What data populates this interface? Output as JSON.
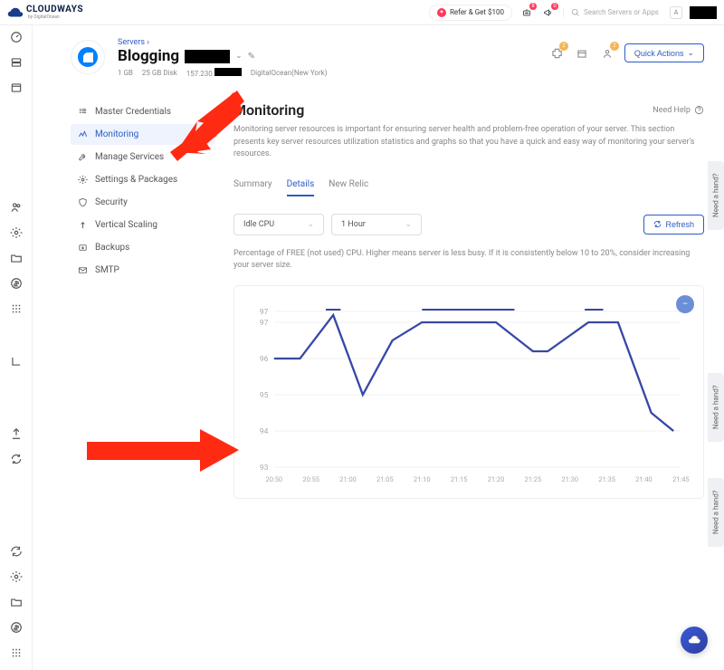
{
  "brand": {
    "name": "CLOUDWAYS",
    "sub": "by DigitalOcean"
  },
  "topbar": {
    "refer_label": "Refer & Get $100",
    "bot_badge": "8",
    "announce_badge": "0",
    "search_placeholder": "Search Servers or Apps",
    "avatar_initial": "A"
  },
  "header": {
    "breadcrumb": "Servers ›",
    "server_name": "Blogging",
    "specs": {
      "ram": "1 GB",
      "disk": "25 GB Disk",
      "ip_prefix": "157.230.",
      "provider": "DigitalOcean(New York)"
    },
    "badge2": "2",
    "badge3": "2",
    "quick_actions": "Quick Actions"
  },
  "sidenav": [
    {
      "icon": "credentials",
      "label": "Master Credentials"
    },
    {
      "icon": "monitoring",
      "label": "Monitoring"
    },
    {
      "icon": "wrench",
      "label": "Manage Services"
    },
    {
      "icon": "gear",
      "label": "Settings & Packages"
    },
    {
      "icon": "shield",
      "label": "Security"
    },
    {
      "icon": "scale",
      "label": "Vertical Scaling"
    },
    {
      "icon": "backup",
      "label": "Backups"
    },
    {
      "icon": "mail",
      "label": "SMTP"
    }
  ],
  "content": {
    "title": "Monitoring",
    "help": "Need Help",
    "desc": "Monitoring server resources is important for ensuring server health and problem-free operation of your server. This section presents key server resources utilization statistics and graphs so that you have a quick and easy way of monitoring your server's resources.",
    "tabs": [
      "Summary",
      "Details",
      "New Relic"
    ],
    "active_tab": 1,
    "metric_select": "Idle CPU",
    "range_select": "1 Hour",
    "refresh": "Refresh",
    "metric_desc": "Percentage of FREE (not used) CPU. Higher means server is less busy. If it is consistently below 10 to 20%, consider increasing your server size."
  },
  "chart": {
    "type": "line",
    "ylim": [
      93,
      97.5
    ],
    "ytick_labels": [
      "97",
      "97",
      "96",
      "95",
      "94",
      "93"
    ],
    "ytick_values": [
      97.3,
      97,
      96,
      95,
      94,
      93
    ],
    "x_labels": [
      "20:50",
      "20:55",
      "21:00",
      "21:05",
      "21:10",
      "21:15",
      "21:20",
      "21:25",
      "21:30",
      "21:35",
      "21:40",
      "21:45"
    ],
    "points": [
      [
        0,
        96
      ],
      [
        0.7,
        96
      ],
      [
        1.6,
        97.2
      ],
      [
        2.4,
        95
      ],
      [
        3.2,
        96.5
      ],
      [
        4,
        97
      ],
      [
        5.3,
        97
      ],
      [
        6,
        97
      ],
      [
        7,
        96.2
      ],
      [
        7.4,
        96.2
      ],
      [
        8.5,
        97
      ],
      [
        9.3,
        97
      ],
      [
        10.2,
        94.5
      ],
      [
        10.8,
        94
      ]
    ],
    "ceil_segments": [
      [
        [
          1.4,
          97.35
        ],
        [
          1.8,
          97.35
        ]
      ],
      [
        [
          4.0,
          97.35
        ],
        [
          6.5,
          97.35
        ]
      ],
      [
        [
          8.4,
          97.35
        ],
        [
          8.9,
          97.35
        ]
      ]
    ],
    "line_color": "#3748a6",
    "grid_color": "#f2f2f2",
    "background_color": "#ffffff",
    "label_color": "#aaaaaa",
    "y_fontsize": 8,
    "x_fontsize": 7,
    "expand_bg": "#6b8fd6"
  },
  "side_tab": "Need a hand?",
  "arrows_color": "#ff2a12"
}
